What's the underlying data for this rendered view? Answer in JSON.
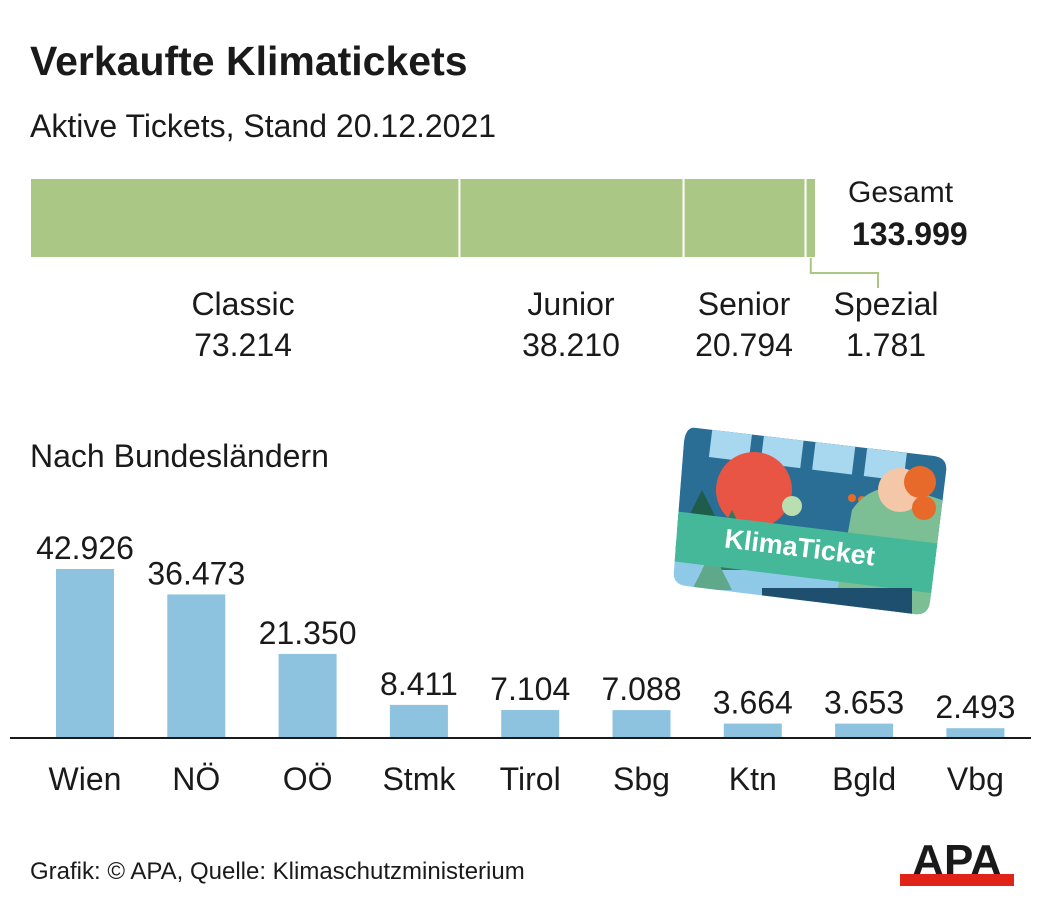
{
  "title": "Verkaufte Klimatickets",
  "subtitle": "Aktive Tickets, Stand 20.12.2021",
  "total": {
    "label": "Gesamt",
    "value": "133.999"
  },
  "section_title": "Nach Bundesländern",
  "footer": "Grafik: © APA, Quelle: Klimaschutzministerium",
  "logo_text": "APA",
  "card_text": "KlimaTicket",
  "colors": {
    "stack": "#abc785",
    "bars": "#8ec3e0",
    "axis": "#1a1a1a",
    "logo_red": "#e2231a"
  },
  "chart_data": [
    {
      "type": "bar",
      "orientation": "horizontal-stacked",
      "title": "Verkaufte Klimatickets",
      "subtitle": "Aktive Tickets, Stand 20.12.2021",
      "categories": [
        "Classic",
        "Junior",
        "Senior",
        "Spezial"
      ],
      "values": [
        73214,
        38210,
        20794,
        1781
      ],
      "labels": [
        "73.214",
        "38.210",
        "20.794",
        "1.781"
      ],
      "total": 133999,
      "total_label": "133.999"
    },
    {
      "type": "bar",
      "title": "Nach Bundesländern",
      "categories": [
        "Wien",
        "NÖ",
        "OÖ",
        "Stmk",
        "Tirol",
        "Sbg",
        "Ktn",
        "Bgld",
        "Vbg"
      ],
      "values": [
        42926,
        36473,
        21350,
        8411,
        7104,
        7088,
        3664,
        3653,
        2493
      ],
      "labels": [
        "42.926",
        "36.473",
        "21.350",
        "8.411",
        "7.104",
        "7.088",
        "3.664",
        "3.653",
        "2.493"
      ],
      "ylim": [
        0,
        42926
      ]
    }
  ]
}
